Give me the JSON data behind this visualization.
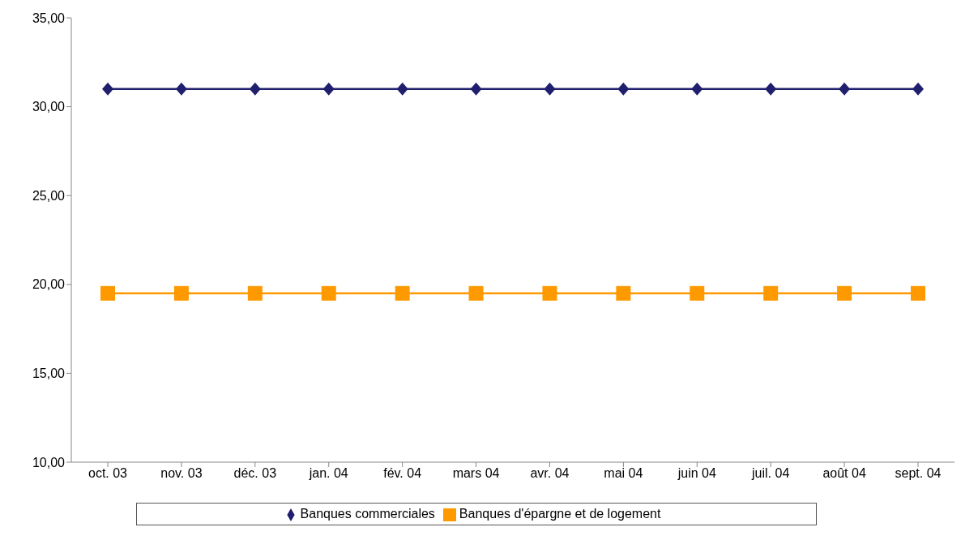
{
  "chart_data": {
    "type": "line",
    "categories": [
      "oct. 03",
      "nov. 03",
      "déc. 03",
      "jan. 04",
      "fév. 04",
      "mars 04",
      "avr. 04",
      "mai 04",
      "juin 04",
      "juil. 04",
      "août 04",
      "sept. 04"
    ],
    "series": [
      {
        "name": "Banques commerciales",
        "color": "#1f1f6e",
        "marker": "diamond",
        "values": [
          31,
          31,
          31,
          31,
          31,
          31,
          31,
          31,
          31,
          31,
          31,
          31
        ]
      },
      {
        "name": "Banques d'épargne et de logement",
        "color": "#ff9900",
        "marker": "square",
        "values": [
          19.5,
          19.5,
          19.5,
          19.5,
          19.5,
          19.5,
          19.5,
          19.5,
          19.5,
          19.5,
          19.5,
          19.5
        ]
      }
    ],
    "ylim": [
      10,
      35
    ],
    "yticks": [
      {
        "value": 10,
        "label": "10,00"
      },
      {
        "value": 15,
        "label": "15,00"
      },
      {
        "value": 20,
        "label": "20,00"
      },
      {
        "value": 25,
        "label": "25,00"
      },
      {
        "value": 30,
        "label": "30,00"
      },
      {
        "value": 35,
        "label": "35,00"
      }
    ],
    "grid": false,
    "legend": "bottom"
  }
}
